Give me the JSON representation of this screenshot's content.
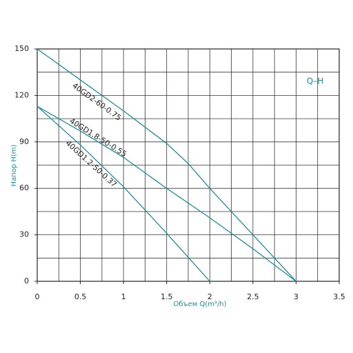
{
  "chart_data": {
    "type": "line",
    "title": "Q–H",
    "x_label": "Объем Q(m³/h)",
    "y_label": "Напор H(m)",
    "xlim": [
      0,
      3.5
    ],
    "ylim": [
      0,
      150
    ],
    "xticks": [
      0,
      0.5,
      1,
      1.5,
      2,
      2.5,
      3,
      3.5
    ],
    "yticks": [
      0,
      30,
      60,
      90,
      120,
      150
    ],
    "xgrid": [
      0.25,
      0.5,
      0.75,
      1,
      1.25,
      1.5,
      1.75,
      2,
      2.25,
      2.5,
      2.75,
      3,
      3.25
    ],
    "ygrid": [
      15,
      30,
      45,
      60,
      75,
      90,
      105,
      120,
      135
    ],
    "grid": true,
    "series": [
      {
        "name": "40GD2-60-0.75",
        "color": "#1f8c9b",
        "x": [
          0,
          0.5,
          1,
          1.5,
          1.75,
          2,
          2.5,
          3
        ],
        "values": [
          150,
          130,
          110,
          89,
          76,
          60,
          30,
          0
        ]
      },
      {
        "name": "40GD1.8-50-0.55",
        "color": "#1f8c9b",
        "x": [
          0,
          0.5,
          1,
          1.5,
          2,
          2.5,
          3
        ],
        "values": [
          113,
          97,
          80,
          60,
          41,
          21,
          0
        ]
      },
      {
        "name": "40GD1.2-50-0.37",
        "color": "#1f8c9b",
        "x": [
          0,
          0.5,
          1,
          1.5,
          2
        ],
        "values": [
          113,
          88,
          61,
          31,
          0
        ]
      }
    ]
  }
}
